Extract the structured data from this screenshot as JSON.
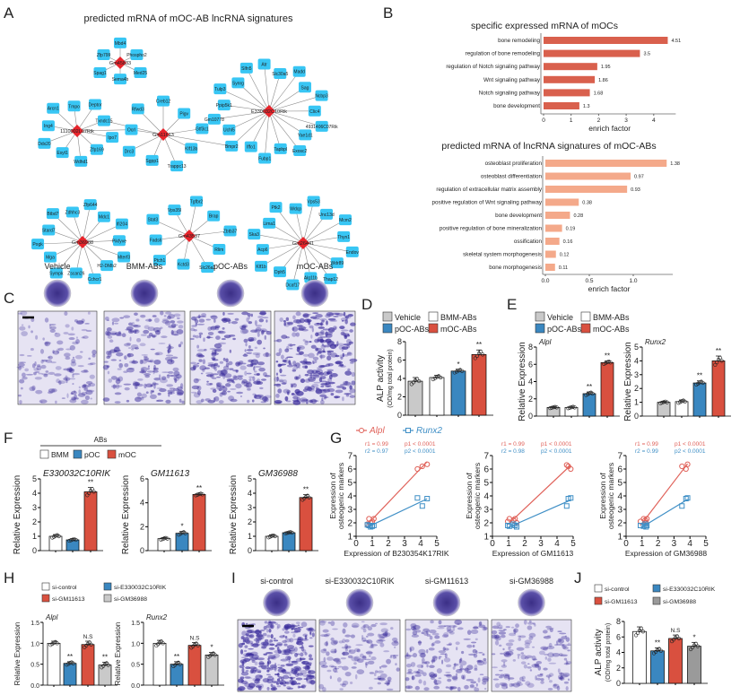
{
  "panel_letters": {
    "A": "A",
    "B": "B",
    "C": "C",
    "D": "D",
    "E": "E",
    "F": "F",
    "G": "G",
    "H": "H",
    "I": "I",
    "J": "J"
  },
  "colors": {
    "node": "#38c6f4",
    "hub": "#e8242b",
    "edge": "#8a8a8a",
    "bar_dark": "#d9604d",
    "bar_light": "#f4a98a",
    "vehicle": "#c9c9c9",
    "bmm": "#ffffff",
    "poc": "#3a87c0",
    "moc": "#d9503f",
    "grey_dark": "#9a9a9a",
    "alpl": "#e0625a",
    "runx2": "#3f8fc6",
    "stain": "#3b2d9c"
  },
  "network": {
    "title": "predicted mRNA of mOC-AB lncRNA signatures",
    "hubs": [
      {
        "label": "Gm45833",
        "targets": [
          "Mbd4",
          "Phospho2",
          "Med25",
          "Sema4b",
          "Spag1",
          "Zfp799"
        ]
      },
      {
        "label": "1110002L07Rik",
        "targets": [
          "Deptor",
          "Txndc15",
          "Ipo7",
          "Zfp169",
          "Wdhd1",
          "Esyt1",
          "Ddx20",
          "Ing4",
          "Arcn1",
          "Tmpo"
        ]
      },
      {
        "label": "Gm11613",
        "targets": [
          "Creb12",
          "Pigv",
          "Gtf3c1",
          "Klf13b",
          "Trappc13",
          "Sgpp1",
          "Drc3",
          "Ocrl",
          "Rfwd3"
        ]
      },
      {
        "label": "E330032C10Rik",
        "targets": [
          "Atr",
          "Slc30a5",
          "Madd",
          "Sag",
          "Ncbp3",
          "Clic4",
          "4931406C07Rik",
          "Yae1d1",
          "Exosc2",
          "Tapbpl",
          "Fubp1",
          "Iffo1",
          "Bmpr2",
          "Uchl5",
          "Gm10778",
          "Ppip5k1",
          "Tulp3",
          "Synrg",
          "Slfn5"
        ]
      },
      {
        "label": "Gm36988",
        "targets": [
          "Zfp644",
          "Mdc1",
          "Ifi204",
          "Pikfyve",
          "Mterf3",
          "H2-DMb2",
          "Cchcr1",
          "Zscan26",
          "Sympk",
          "Mga",
          "Pogk",
          "Stard7",
          "Btbd7",
          "Zdhhc3"
        ]
      },
      {
        "label": "Gm43537",
        "targets": [
          "Tgfbr2",
          "Brap",
          "Zbtb37",
          "Rlim",
          "Slc26a2",
          "Kctd3",
          "Ptch1",
          "Fads6",
          "Stat3",
          "Vps35l"
        ]
      },
      {
        "label": "Gm26441",
        "targets": [
          "Vps53",
          "Unc13d",
          "Mcm2",
          "Thyn1",
          "Endov",
          "Wdr89",
          "Thap12",
          "Alg11b",
          "Dcaf17",
          "Dph5",
          "Klf1b",
          "Acp6",
          "Ska3",
          "Lima1",
          "Ptk2",
          "Wdcp"
        ]
      }
    ],
    "cross_links": [
      [
        1,
        "Ocrl"
      ],
      [
        2,
        "Bmpr2"
      ],
      [
        2,
        "Txndc15"
      ]
    ]
  },
  "legend_abs": {
    "items": [
      {
        "label": "Vehicle",
        "color": "#c9c9c9"
      },
      {
        "label": "BMM-ABs",
        "color": "#ffffff"
      },
      {
        "label": "pOC-ABs",
        "color": "#3a87c0"
      },
      {
        "label": "mOC-ABs",
        "color": "#d9503f"
      }
    ]
  },
  "legend_f": {
    "group": "ABs",
    "items": [
      {
        "label": "BMM",
        "color": "#ffffff"
      },
      {
        "label": "pOC",
        "color": "#3a87c0"
      },
      {
        "label": "mOC",
        "color": "#d9503f"
      }
    ]
  },
  "legend_g": {
    "items": [
      {
        "label": "Alpl",
        "color": "#e0625a"
      },
      {
        "label": "Runx2",
        "color": "#3f8fc6"
      }
    ]
  },
  "legend_si": {
    "items": [
      {
        "label": "si-control",
        "color": "#ffffff"
      },
      {
        "label": "si-E330032C10RIK",
        "color": "#3a87c0"
      },
      {
        "label": "si-GM11613",
        "color": "#d9503f"
      },
      {
        "label": "si-GM36988",
        "color": "#c9c9c9"
      }
    ]
  },
  "legend_si_j": {
    "items": [
      {
        "label": "si-control",
        "color": "#ffffff"
      },
      {
        "label": "si-E330032C10RIK",
        "color": "#3a87c0"
      },
      {
        "label": "si-GM11613",
        "color": "#d9503f"
      },
      {
        "label": "si-GM36988",
        "color": "#9a9a9a"
      }
    ]
  },
  "panel_c": {
    "labels": [
      "Vehicle",
      "BMM-ABs",
      "pOC-ABs",
      "mOC-ABs"
    ],
    "stain_density": [
      0.35,
      0.6,
      0.75,
      0.95
    ]
  },
  "panel_i": {
    "labels": [
      "si-control",
      "si-E330032C10RIK",
      "si-GM11613",
      "si-GM36988"
    ],
    "stain_density": [
      0.95,
      0.35,
      0.45,
      0.4
    ]
  },
  "chart_data": {
    "B1": {
      "type": "bar",
      "orientation": "horizontal",
      "title": "specific expressed mRNA of mOCs",
      "xlabel": "enrich factor",
      "categories": [
        "bone remodeling",
        "regulation of bone remodeling",
        "regulation of Notch signaling pathway",
        "Wnt signaling pathway",
        "Notch signaling pathway",
        "bone development"
      ],
      "values": [
        4.51,
        3.5,
        1.95,
        1.86,
        1.68,
        1.3
      ],
      "value_labels": [
        "4.51",
        "3.5",
        "1.95",
        "1.86",
        "1.68",
        "1.3"
      ],
      "xticks": [
        0,
        1,
        2,
        3,
        4
      ],
      "xtick_labels": [
        "0",
        "1",
        "2",
        "3",
        "4"
      ],
      "xlim": [
        0,
        4.8
      ]
    },
    "B2": {
      "type": "bar",
      "orientation": "horizontal",
      "title": "predicted mRNA of lncRNA signatures of mOC-ABs",
      "xlabel": "enrich factor",
      "categories": [
        "osteoblast proliferation",
        "osteoblast differentiation",
        "regulation of extracellular matrix assembly",
        "positive regulation of Wnt signaling pathway",
        "bone development",
        "positive regulation of bone mineralization",
        "ossification",
        "skeletal system morphogenesis",
        "bone morphogenesis"
      ],
      "values": [
        1.38,
        0.97,
        0.93,
        0.38,
        0.28,
        0.19,
        0.16,
        0.12,
        0.11
      ],
      "value_labels": [
        "1.38",
        "0.97",
        "0.93",
        "0.38",
        "0.28",
        "0.19",
        "0.16",
        "0.12",
        "0.11"
      ],
      "xticks": [
        0,
        0.5,
        1.0
      ],
      "xtick_labels": [
        "0.0",
        "0.5",
        "1.0"
      ],
      "xlim": [
        0,
        1.45
      ]
    },
    "D": {
      "type": "bar",
      "title": "",
      "ylabel": "ALP activity",
      "ylabel2": "(OD/mg total protein)",
      "categories": [
        "Vehicle",
        "BMM-ABs",
        "pOC-ABs",
        "mOC-ABs"
      ],
      "values": [
        3.7,
        4.1,
        4.8,
        6.6
      ],
      "errors": [
        0.4,
        0.25,
        0.2,
        0.5
      ],
      "sig": [
        "",
        "",
        "*",
        "**"
      ],
      "ylim": [
        0,
        8
      ],
      "yticks": [
        0,
        2,
        4,
        6,
        8
      ],
      "ytick_labels": [
        "0",
        "2",
        "4",
        "6",
        "8"
      ]
    },
    "E1": {
      "type": "bar",
      "title": "Alpl",
      "ylabel": "Relative Expression",
      "categories": [
        "Vehicle",
        "BMM-ABs",
        "pOC-ABs",
        "mOC-ABs"
      ],
      "values": [
        1.0,
        1.0,
        2.6,
        6.2
      ],
      "errors": [
        0.1,
        0.12,
        0.2,
        0.2
      ],
      "sig": [
        "",
        "",
        "**",
        "**"
      ],
      "ylim": [
        0,
        8
      ],
      "yticks": [
        0,
        2,
        4,
        6,
        8
      ],
      "ytick_labels": [
        "0",
        "2",
        "4",
        "6",
        "8"
      ]
    },
    "E2": {
      "type": "bar",
      "title": "Runx2",
      "ylabel": "Relative Expression",
      "categories": [
        "Vehicle",
        "BMM-ABs",
        "pOC-ABs",
        "mOC-ABs"
      ],
      "values": [
        1.0,
        1.05,
        2.4,
        4.0
      ],
      "errors": [
        0.08,
        0.12,
        0.15,
        0.35
      ],
      "sig": [
        "",
        "",
        "**",
        "**"
      ],
      "ylim": [
        0,
        5
      ],
      "yticks": [
        0,
        1,
        2,
        3,
        4,
        5
      ],
      "ytick_labels": [
        "0",
        "1",
        "2",
        "3",
        "4",
        "5"
      ]
    },
    "F1": {
      "type": "bar",
      "title": "E330032C10RIK",
      "ylabel": "Relative Expression",
      "categories": [
        "BMM",
        "pOC",
        "mOC"
      ],
      "values": [
        1.0,
        0.75,
        4.1
      ],
      "errors": [
        0.12,
        0.08,
        0.3
      ],
      "sig": [
        "",
        "",
        "**"
      ],
      "ylim": [
        0,
        5
      ],
      "yticks": [
        0,
        1,
        2,
        3,
        4,
        5
      ],
      "ytick_labels": [
        "0",
        "1",
        "2",
        "3",
        "4",
        "5"
      ]
    },
    "F2": {
      "type": "bar",
      "title": "GM11613",
      "ylabel": "Relative Expression",
      "categories": [
        "BMM",
        "pOC",
        "mOC"
      ],
      "values": [
        1.0,
        1.45,
        4.7
      ],
      "errors": [
        0.1,
        0.15,
        0.1
      ],
      "sig": [
        "",
        "*",
        "**"
      ],
      "ylim": [
        0,
        6
      ],
      "yticks": [
        0,
        2,
        4,
        6
      ],
      "ytick_labels": [
        "0",
        "2",
        "4",
        "6"
      ]
    },
    "F3": {
      "type": "bar",
      "title": "GM36988",
      "ylabel": "Relative Expression",
      "categories": [
        "BMM",
        "pOC",
        "mOC"
      ],
      "values": [
        1.0,
        1.25,
        3.7
      ],
      "errors": [
        0.1,
        0.06,
        0.2
      ],
      "sig": [
        "",
        "",
        "**"
      ],
      "ylim": [
        0,
        5
      ],
      "yticks": [
        0,
        1,
        2,
        3,
        4,
        5
      ],
      "ytick_labels": [
        "0",
        "1",
        "2",
        "3",
        "4",
        "5"
      ]
    },
    "G1": {
      "type": "scatter",
      "xlabel": "Expression of B230354K17RIK",
      "ylabel": "Expression of",
      "ylabel2": "osteogenic markers",
      "x": [
        0.7,
        0.8,
        0.9,
        1.0,
        1.1,
        3.8,
        4.1,
        4.4
      ],
      "series": [
        {
          "name": "Alpl",
          "y": [
            1.9,
            2.3,
            2.0,
            2.1,
            2.3,
            6.0,
            6.2,
            6.35
          ]
        },
        {
          "name": "Runx2",
          "y": [
            1.85,
            1.8,
            1.7,
            1.75,
            1.8,
            3.85,
            3.25,
            3.8
          ]
        }
      ],
      "stats": [
        "r1 = 0.99",
        "p1 < 0.0001",
        "r2 = 0.97",
        "p2 < 0.0001"
      ],
      "xlim": [
        0,
        5
      ],
      "ylim": [
        1,
        7
      ],
      "xticks": [
        0,
        1,
        2,
        3,
        4,
        5
      ],
      "yticks": [
        1,
        2,
        3,
        4,
        5,
        6,
        7
      ]
    },
    "G2": {
      "type": "scatter",
      "xlabel": "Expression of GM11613",
      "ylabel": "Expression of",
      "ylabel2": "osteogenic markers",
      "x": [
        0.95,
        1.05,
        1.3,
        1.4,
        1.5,
        4.6,
        4.7,
        4.85
      ],
      "series": [
        {
          "name": "Alpl",
          "y": [
            2.1,
            2.3,
            2.2,
            2.3,
            2.0,
            6.3,
            6.2,
            6.0
          ]
        },
        {
          "name": "Runx2",
          "y": [
            1.8,
            1.75,
            1.9,
            1.8,
            1.7,
            3.25,
            3.8,
            3.85
          ]
        }
      ],
      "stats": [
        "r1 = 0.99",
        "p1 < 0.0001",
        "r2 = 0.98",
        "p2 < 0.0001"
      ],
      "xlim": [
        0,
        5
      ],
      "ylim": [
        1,
        7
      ],
      "xticks": [
        0,
        1,
        2,
        3,
        4,
        5
      ],
      "yticks": [
        1,
        2,
        3,
        4,
        5,
        6,
        7
      ]
    },
    "G3": {
      "type": "scatter",
      "xlabel": "Expression of GM36988",
      "ylabel": "Expression of",
      "ylabel2": "osteogenic markers",
      "x": [
        0.9,
        1.1,
        1.2,
        1.3,
        1.25,
        3.5,
        3.75,
        3.85
      ],
      "series": [
        {
          "name": "Alpl",
          "y": [
            2.1,
            2.3,
            2.2,
            2.3,
            2.0,
            6.2,
            6.0,
            6.35
          ]
        },
        {
          "name": "Runx2",
          "y": [
            1.8,
            1.75,
            1.9,
            1.8,
            1.7,
            3.25,
            3.8,
            3.85
          ]
        }
      ],
      "stats": [
        "r1 = 0.99",
        "p1 < 0.0001",
        "r2 = 0.99",
        "p2 < 0.0001"
      ],
      "xlim": [
        0,
        5
      ],
      "ylim": [
        1,
        7
      ],
      "xticks": [
        0,
        1,
        2,
        3,
        4,
        5
      ],
      "yticks": [
        1,
        2,
        3,
        4,
        5,
        6,
        7
      ]
    },
    "H1": {
      "type": "bar",
      "title": "Alpl",
      "ylabel": "Relative Expression",
      "categories": [
        "si-control",
        "si-E330032C10RIK",
        "si-GM11613",
        "si-GM36988"
      ],
      "values": [
        1.0,
        0.52,
        0.97,
        0.48
      ],
      "errors": [
        0.05,
        0.04,
        0.08,
        0.07
      ],
      "sig": [
        "",
        "**",
        "N.S",
        "**"
      ],
      "ylim": [
        0,
        1.5
      ],
      "yticks": [
        0,
        0.5,
        1.0,
        1.5
      ],
      "ytick_labels": [
        "0.0",
        "0.5",
        "1.0",
        "1.5"
      ]
    },
    "H2": {
      "type": "bar",
      "title": "Runx2",
      "ylabel": "Relative Expression",
      "categories": [
        "si-control",
        "si-E330032C10RIK",
        "si-GM11613",
        "si-GM36988"
      ],
      "values": [
        1.0,
        0.5,
        0.95,
        0.72
      ],
      "errors": [
        0.07,
        0.06,
        0.07,
        0.06
      ],
      "sig": [
        "",
        "**",
        "N.S",
        "*"
      ],
      "ylim": [
        0,
        1.5
      ],
      "yticks": [
        0,
        0.5,
        1.0,
        1.5
      ],
      "ytick_labels": [
        "0.0",
        "0.5",
        "1.0",
        "1.5"
      ]
    },
    "J": {
      "type": "bar",
      "title": "",
      "ylabel": "ALP activity",
      "ylabel2": "(OD/mg total protein)",
      "categories": [
        "si-control",
        "si-E330032C10RIK",
        "si-GM11613",
        "si-GM36988"
      ],
      "values": [
        6.7,
        4.2,
        5.8,
        4.8
      ],
      "errors": [
        0.6,
        0.4,
        0.45,
        0.5
      ],
      "sig": [
        "",
        "**",
        "N.S",
        "*"
      ],
      "ylim": [
        0,
        8
      ],
      "yticks": [
        0,
        2,
        4,
        6,
        8
      ],
      "ytick_labels": [
        "0",
        "2",
        "4",
        "6",
        "8"
      ]
    }
  }
}
